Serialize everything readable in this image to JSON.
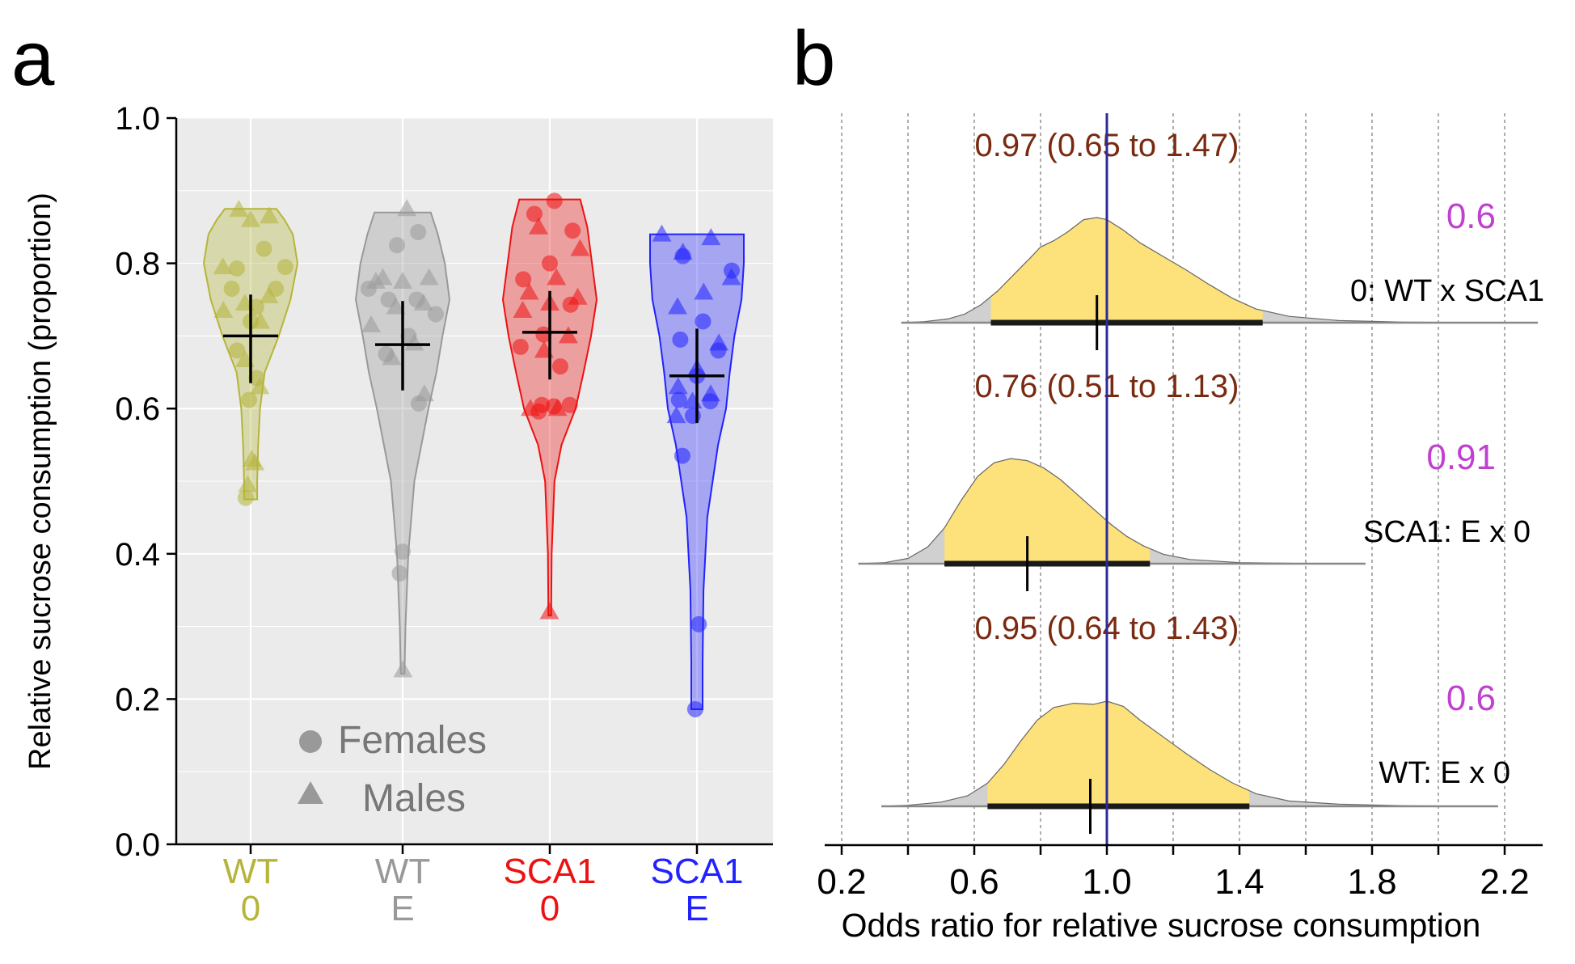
{
  "chart_data": [
    {
      "panel": "a",
      "type": "violin",
      "ylabel": "Relative sucrose consumption (proportion)",
      "ylim": [
        0,
        1
      ],
      "yticks": [
        "0.0",
        "0.2",
        "0.4",
        "0.6",
        "0.8",
        "1.0"
      ],
      "legend": {
        "position": "bottom-left",
        "items": [
          "Females",
          "Males"
        ]
      },
      "groups": [
        {
          "line1": "WT",
          "line2": "0",
          "color": "#b5b53a",
          "fill": "rgba(181,181,58,0.35)",
          "min": 0.475,
          "max": 0.875,
          "mean": 0.7,
          "ci": [
            0.635,
            0.757
          ],
          "width": [
            [
              0.475,
              0.14
            ],
            [
              0.5,
              0.14
            ],
            [
              0.55,
              0.16
            ],
            [
              0.6,
              0.2
            ],
            [
              0.65,
              0.3
            ],
            [
              0.7,
              0.6
            ],
            [
              0.75,
              0.85
            ],
            [
              0.8,
              1.0
            ],
            [
              0.84,
              0.9
            ],
            [
              0.86,
              0.72
            ],
            [
              0.875,
              0.55
            ]
          ],
          "females": [
            0.477,
            0.612,
            0.642,
            0.68,
            0.72,
            0.765,
            0.765,
            0.74,
            0.795,
            0.793,
            0.82
          ],
          "males": [
            0.525,
            0.495,
            0.53,
            0.63,
            0.667,
            0.72,
            0.735,
            0.745,
            0.755,
            0.795,
            0.86,
            0.865,
            0.874
          ]
        },
        {
          "line1": "WT",
          "line2": "E",
          "color": "#999999",
          "fill": "rgba(153,153,153,0.35)",
          "min": 0.235,
          "max": 0.87,
          "mean": 0.688,
          "ci": [
            0.625,
            0.748
          ],
          "width": [
            [
              0.235,
              0.04
            ],
            [
              0.3,
              0.06
            ],
            [
              0.4,
              0.12
            ],
            [
              0.5,
              0.25
            ],
            [
              0.6,
              0.55
            ],
            [
              0.65,
              0.72
            ],
            [
              0.7,
              0.85
            ],
            [
              0.75,
              1.0
            ],
            [
              0.8,
              0.9
            ],
            [
              0.84,
              0.75
            ],
            [
              0.87,
              0.6
            ]
          ],
          "females": [
            0.373,
            0.403,
            0.607,
            0.675,
            0.7,
            0.73,
            0.75,
            0.75,
            0.765,
            0.825,
            0.843
          ],
          "males": [
            0.24,
            0.62,
            0.67,
            0.69,
            0.715,
            0.74,
            0.745,
            0.775,
            0.775,
            0.78,
            0.78,
            0.875
          ]
        },
        {
          "line1": "SCA1",
          "line2": "0",
          "color": "#ee1111",
          "fill": "rgba(238,17,17,0.35)",
          "min": 0.315,
          "max": 0.888,
          "mean": 0.705,
          "ci": [
            0.64,
            0.762
          ],
          "width": [
            [
              0.315,
              0.03
            ],
            [
              0.4,
              0.04
            ],
            [
              0.5,
              0.1
            ],
            [
              0.55,
              0.25
            ],
            [
              0.6,
              0.55
            ],
            [
              0.65,
              0.72
            ],
            [
              0.7,
              0.88
            ],
            [
              0.75,
              1.0
            ],
            [
              0.8,
              0.9
            ],
            [
              0.85,
              0.8
            ],
            [
              0.888,
              0.65
            ]
          ],
          "females": [
            0.596,
            0.603,
            0.605,
            0.605,
            0.658,
            0.685,
            0.702,
            0.743,
            0.778,
            0.8,
            0.845,
            0.868,
            0.886
          ],
          "males": [
            0.32,
            0.6,
            0.6,
            0.68,
            0.7,
            0.735,
            0.745,
            0.753,
            0.76,
            0.78,
            0.82,
            0.85
          ]
        },
        {
          "line1": "SCA1",
          "line2": "E",
          "color": "#2222ff",
          "fill": "rgba(34,34,255,0.35)",
          "min": 0.186,
          "max": 0.84,
          "mean": 0.645,
          "ci": [
            0.58,
            0.71
          ],
          "width": [
            [
              0.186,
              0.12
            ],
            [
              0.25,
              0.12
            ],
            [
              0.35,
              0.14
            ],
            [
              0.45,
              0.22
            ],
            [
              0.55,
              0.45
            ],
            [
              0.6,
              0.62
            ],
            [
              0.65,
              0.7
            ],
            [
              0.7,
              0.8
            ],
            [
              0.75,
              0.95
            ],
            [
              0.8,
              1.0
            ],
            [
              0.84,
              1.0
            ]
          ],
          "females": [
            0.186,
            0.303,
            0.535,
            0.59,
            0.61,
            0.612,
            0.645,
            0.68,
            0.695,
            0.72,
            0.79,
            0.81
          ],
          "males": [
            0.59,
            0.61,
            0.62,
            0.63,
            0.655,
            0.69,
            0.74,
            0.76,
            0.78,
            0.815,
            0.835,
            0.84
          ]
        }
      ]
    },
    {
      "panel": "b",
      "type": "density",
      "xlabel": "Odds ratio for relative sucrose consumption",
      "xlim": [
        0.2,
        2.3
      ],
      "xticks": [
        "0.2",
        "0.6",
        "1.0",
        "1.4",
        "1.8",
        "2.2"
      ],
      "reference_line": 1.0,
      "rows": [
        {
          "label": "0: WT x SCA1",
          "p": "0.6",
          "estimate": 0.97,
          "ci": [
            0.65,
            1.47
          ],
          "ci_text": "0.97 (0.65 to 1.47)",
          "range": [
            0.38,
            2.3
          ],
          "density": [
            [
              0.38,
              0.0
            ],
            [
              0.45,
              0.01
            ],
            [
              0.52,
              0.035
            ],
            [
              0.57,
              0.08
            ],
            [
              0.62,
              0.17
            ],
            [
              0.67,
              0.3
            ],
            [
              0.72,
              0.46
            ],
            [
              0.77,
              0.62
            ],
            [
              0.8,
              0.72
            ],
            [
              0.84,
              0.78
            ],
            [
              0.88,
              0.86
            ],
            [
              0.93,
              0.98
            ],
            [
              0.97,
              1.0
            ],
            [
              1.0,
              0.98
            ],
            [
              1.05,
              0.88
            ],
            [
              1.1,
              0.76
            ],
            [
              1.17,
              0.63
            ],
            [
              1.24,
              0.5
            ],
            [
              1.31,
              0.36
            ],
            [
              1.38,
              0.23
            ],
            [
              1.45,
              0.13
            ],
            [
              1.55,
              0.06
            ],
            [
              1.7,
              0.02
            ],
            [
              1.9,
              0.005
            ],
            [
              2.3,
              0.0
            ]
          ]
        },
        {
          "label": "SCA1: E x 0",
          "p": "0.91",
          "estimate": 0.76,
          "ci": [
            0.51,
            1.13
          ],
          "ci_text": "0.76 (0.51 to 1.13)",
          "range": [
            0.25,
            1.78
          ],
          "density": [
            [
              0.25,
              0.0
            ],
            [
              0.33,
              0.01
            ],
            [
              0.4,
              0.05
            ],
            [
              0.46,
              0.16
            ],
            [
              0.51,
              0.34
            ],
            [
              0.56,
              0.6
            ],
            [
              0.61,
              0.83
            ],
            [
              0.66,
              0.96
            ],
            [
              0.71,
              1.0
            ],
            [
              0.76,
              0.98
            ],
            [
              0.81,
              0.91
            ],
            [
              0.86,
              0.8
            ],
            [
              0.91,
              0.66
            ],
            [
              0.96,
              0.52
            ],
            [
              1.01,
              0.38
            ],
            [
              1.06,
              0.26
            ],
            [
              1.11,
              0.17
            ],
            [
              1.17,
              0.09
            ],
            [
              1.25,
              0.04
            ],
            [
              1.4,
              0.01
            ],
            [
              1.6,
              0.002
            ],
            [
              1.78,
              0.0
            ]
          ]
        },
        {
          "label": "WT: E x 0",
          "p": "0.6",
          "estimate": 0.95,
          "ci": [
            0.64,
            1.43
          ],
          "ci_text": "0.95 (0.64 to 1.43)",
          "range": [
            0.32,
            2.18
          ],
          "density": [
            [
              0.32,
              0.0
            ],
            [
              0.4,
              0.01
            ],
            [
              0.5,
              0.04
            ],
            [
              0.58,
              0.1
            ],
            [
              0.64,
              0.22
            ],
            [
              0.69,
              0.4
            ],
            [
              0.74,
              0.62
            ],
            [
              0.79,
              0.82
            ],
            [
              0.84,
              0.94
            ],
            [
              0.9,
              0.98
            ],
            [
              0.96,
              0.97
            ],
            [
              1.0,
              1.0
            ],
            [
              1.05,
              0.95
            ],
            [
              1.1,
              0.82
            ],
            [
              1.17,
              0.66
            ],
            [
              1.24,
              0.5
            ],
            [
              1.31,
              0.35
            ],
            [
              1.38,
              0.22
            ],
            [
              1.45,
              0.12
            ],
            [
              1.55,
              0.05
            ],
            [
              1.7,
              0.02
            ],
            [
              1.9,
              0.005
            ],
            [
              2.18,
              0.0
            ]
          ]
        }
      ]
    }
  ],
  "panel_labels": {
    "a": "a",
    "b": "b"
  },
  "colors": {
    "panel_bg": "#ebebeb",
    "grid": "#ffffff",
    "density_fill": "#fde17a",
    "density_tail": "#d0d0d0",
    "ref_line": "#2b2b99",
    "ci_text": "#7a2a10",
    "p_text": "#c040d0"
  }
}
